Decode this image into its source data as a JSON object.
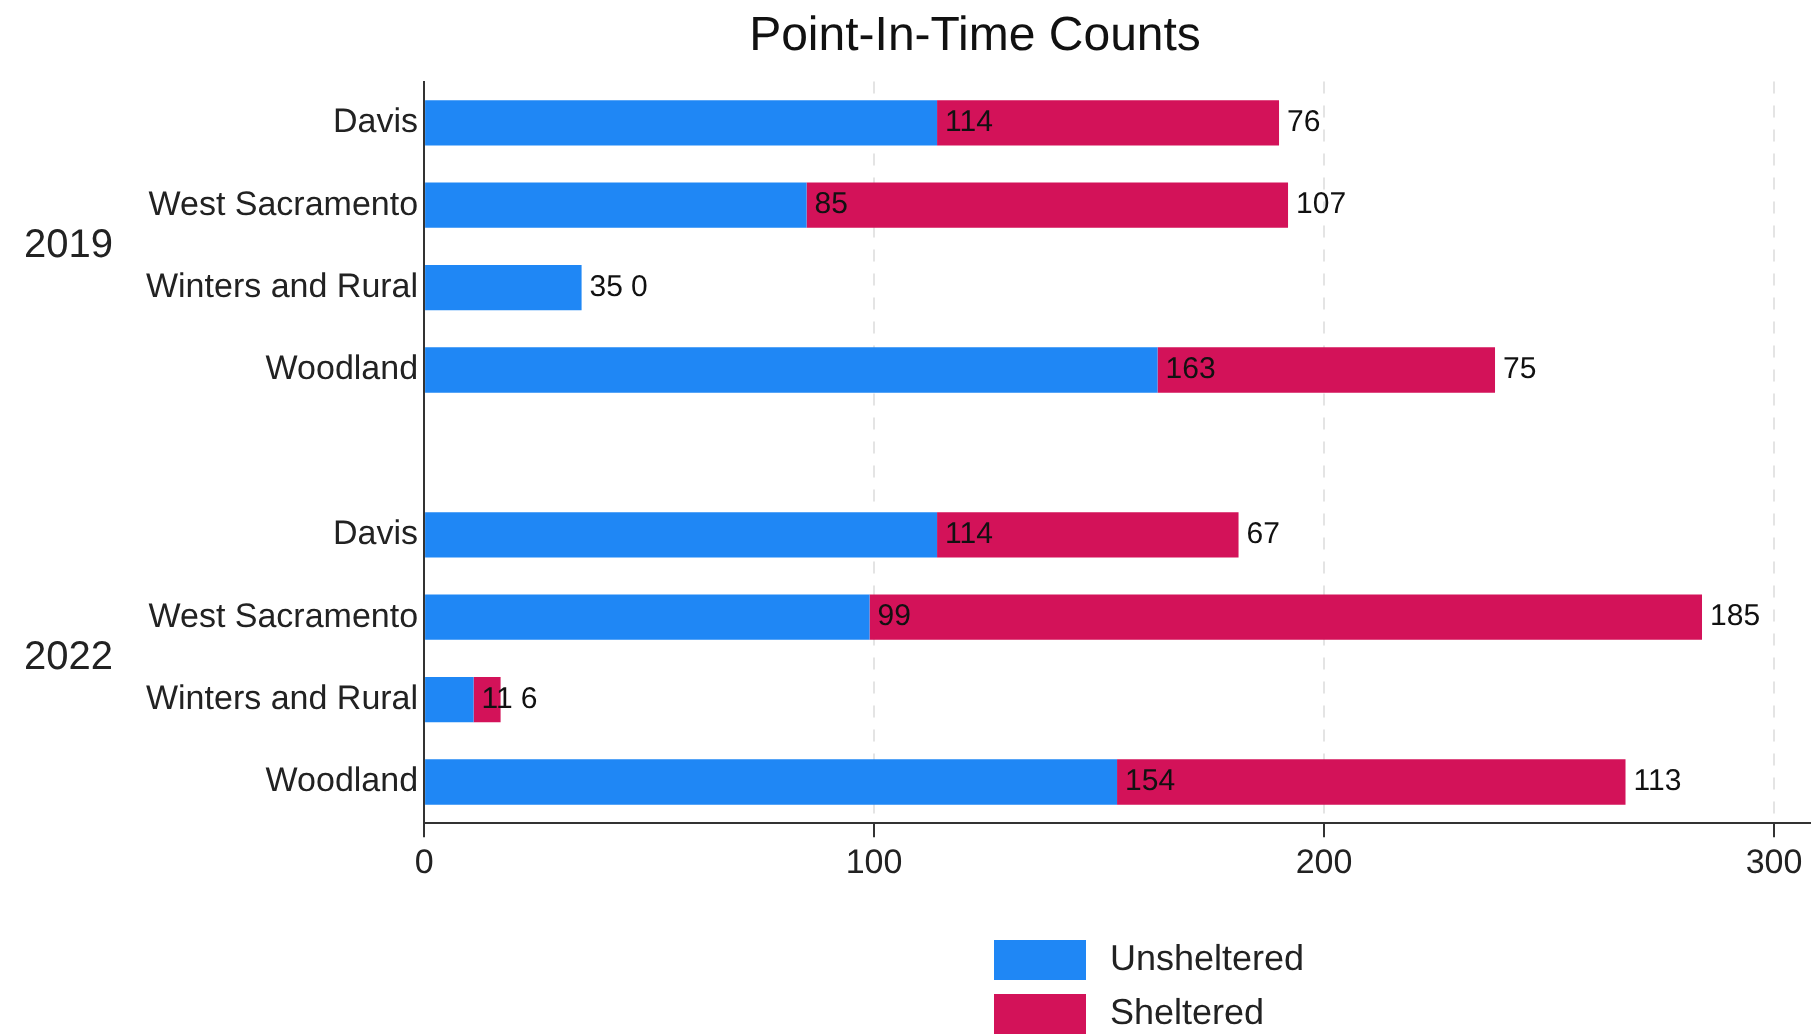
{
  "chart_data": {
    "type": "bar",
    "orientation": "horizontal",
    "stacked": true,
    "title": "Point-In-Time Counts",
    "categories": [
      "Davis",
      "West Sacramento",
      "Winters and Rural",
      "Woodland",
      null,
      "Davis",
      "West Sacramento",
      "Winters and Rural",
      "Woodland"
    ],
    "series": [
      {
        "name": "Unsheltered",
        "color": "#1f87f5",
        "values": [
          114,
          85,
          35,
          163,
          null,
          114,
          99,
          11,
          154
        ]
      },
      {
        "name": "Sheltered",
        "color": "#d31259",
        "values": [
          76,
          107,
          0,
          75,
          null,
          67,
          185,
          6,
          113
        ]
      }
    ],
    "annotations": [
      "2019",
      "2022"
    ],
    "xlim": [
      0,
      308
    ],
    "xticks": [
      0,
      100,
      200,
      300
    ],
    "grid": "x",
    "legend": "bottom",
    "data_labels": true
  }
}
